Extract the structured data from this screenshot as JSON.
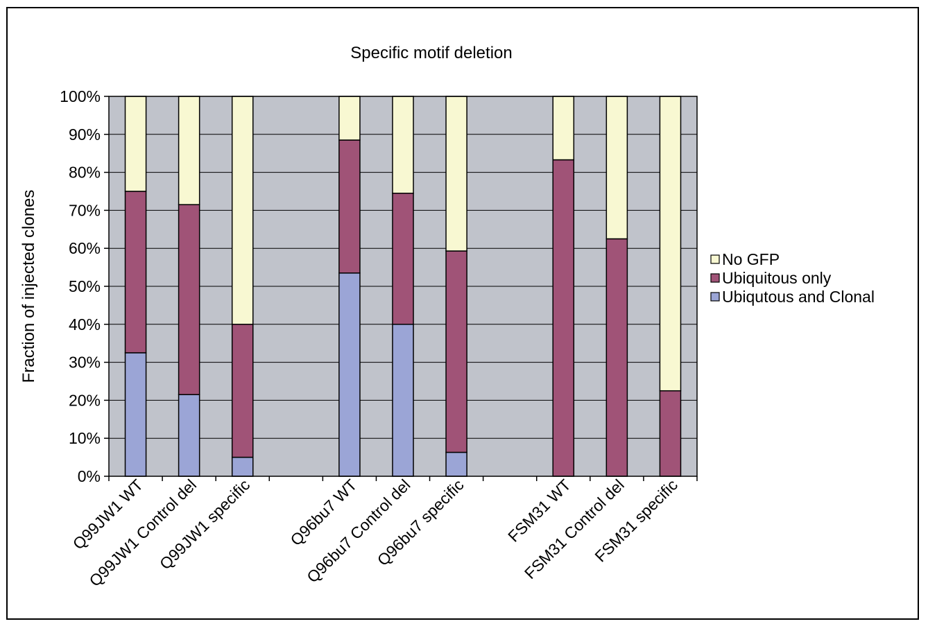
{
  "chart_data": {
    "type": "bar",
    "stacked": true,
    "percent": true,
    "title": "Specific motif deletion",
    "xlabel": "",
    "ylabel": "Fraction of injected clones",
    "ylim": [
      0,
      100
    ],
    "yticks": [
      "0%",
      "10%",
      "20%",
      "30%",
      "40%",
      "50%",
      "60%",
      "70%",
      "80%",
      "90%",
      "100%"
    ],
    "categories": [
      "Q99JW1 WT",
      "Q99JW1 Control del",
      "Q99JW1 specific",
      "",
      "Q96bu7 WT",
      "Q96bu7 Control del",
      "Q96bu7 specific",
      "",
      "FSM31 WT",
      "FSM31 Control del",
      "FSM31 specific"
    ],
    "series": [
      {
        "name": "Ubiqutous and Clonal",
        "color": "#9ba5d6",
        "values": [
          32.5,
          21.5,
          5,
          0,
          53.5,
          40,
          6.3,
          0,
          0,
          0,
          0
        ]
      },
      {
        "name": "Ubiquitous only",
        "color": "#a05377",
        "values": [
          42.5,
          50,
          35,
          0,
          35,
          34.5,
          53,
          0,
          83.3,
          62.5,
          22.5
        ]
      },
      {
        "name": "No GFP",
        "color": "#f8f8d2",
        "values": [
          25,
          28.5,
          60,
          0,
          11.5,
          25.5,
          40.7,
          0,
          16.7,
          37.5,
          77.5
        ]
      }
    ],
    "legend": {
      "position": "right",
      "order": [
        "No GFP",
        "Ubiquitous only",
        "Ubiqutous and Clonal"
      ]
    },
    "grid": true,
    "plot_background": "#c0c3cb"
  }
}
